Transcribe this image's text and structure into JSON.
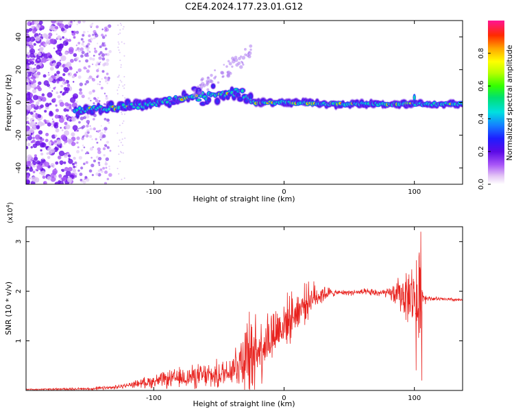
{
  "title": "C2E4.2024.177.23.01.G12",
  "chart_data": [
    {
      "type": "heatmap",
      "xlabel": "Height of straight line (km)",
      "ylabel": "Frequency (Hz)",
      "xlim": [
        -198,
        137
      ],
      "ylim": [
        -50,
        50
      ],
      "xticks": [
        -100,
        0,
        100
      ],
      "yticks": [
        -40,
        -20,
        0,
        20,
        40
      ],
      "colorbar": {
        "label": "Normalized spectral amplitude",
        "range": [
          0,
          1
        ],
        "ticks": [
          0.0,
          0.2,
          0.4,
          0.6,
          0.8
        ]
      },
      "trace": {
        "segments": [
          {
            "x": [
              -160,
              -130,
              -100,
              -75,
              -50,
              -35,
              -25
            ],
            "y": [
              -5,
              -3,
              -1,
              3,
              5,
              6,
              2
            ]
          },
          {
            "x": [
              -25,
              0,
              40,
              80,
              137
            ],
            "y": [
              0,
              0,
              -1,
              -1,
              -1
            ]
          }
        ],
        "peaks_x": [
          -130,
          -78,
          -20,
          -10,
          8,
          95
        ]
      }
    },
    {
      "type": "line",
      "xlabel": "Height of straight line (km)",
      "ylabel": "SNR (10 * v/v)",
      "ylabel_scale": "(x10",
      "ylabel_scale_exp": "4",
      "xlim": [
        -198,
        137
      ],
      "ylim": [
        0,
        3.3
      ],
      "xticks": [
        -100,
        0,
        100
      ],
      "yticks": [
        1,
        2,
        3
      ],
      "series": [
        {
          "color": "#e8221e",
          "trend": {
            "x": [
              -198,
              -150,
              -130,
              -110,
              -90,
              -70,
              -50,
              -40,
              -30,
              -20,
              -10,
              0,
              10,
              20,
              30,
              40,
              60,
              80,
              90,
              100,
              103,
              106,
              110,
              120,
              137
            ],
            "y": [
              0.02,
              0.03,
              0.06,
              0.15,
              0.22,
              0.28,
              0.3,
              0.45,
              0.7,
              0.85,
              1.1,
              1.35,
              1.6,
              1.85,
              1.95,
              1.97,
              1.98,
              1.96,
              1.93,
              1.9,
              1.6,
              1.9,
              1.86,
              1.84,
              1.82
            ]
          },
          "noise": {
            "x": [
              -198,
              -120,
              -100,
              -80,
              -40,
              -30,
              -20,
              -10,
              0,
              20,
              40,
              80,
              90,
              100,
              102,
              104,
              106,
              110,
              137
            ],
            "amp": [
              0.01,
              0.04,
              0.12,
              0.18,
              0.28,
              0.75,
              0.65,
              0.55,
              0.45,
              0.3,
              0.04,
              0.08,
              0.35,
              0.6,
              1.3,
              0.9,
              0.2,
              0.04,
              0.03
            ]
          },
          "peak": {
            "x": 105,
            "y": 3.2
          },
          "dip": {
            "x": 105.6,
            "y": 0.2
          }
        }
      ]
    }
  ]
}
